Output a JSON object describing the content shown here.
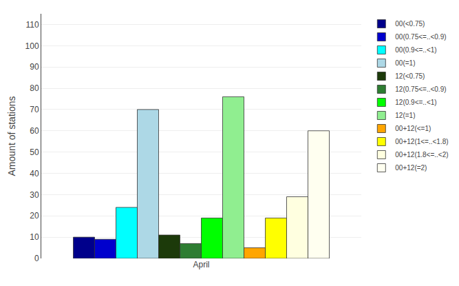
{
  "chart_data": {
    "type": "bar",
    "categories": [
      "April"
    ],
    "ylabel": "Amount of stations",
    "ylim": [
      0,
      115
    ],
    "yticks": [
      0,
      10,
      20,
      30,
      40,
      50,
      60,
      70,
      80,
      90,
      100,
      110
    ],
    "grid": true,
    "legend": "upper right",
    "series": [
      {
        "name": "00(<0.75)",
        "color": "#00008B",
        "values": [
          10
        ]
      },
      {
        "name": "00(0.75<=..<0.9)",
        "color": "#0000CD",
        "values": [
          9
        ]
      },
      {
        "name": "00(0.9<=..<1)",
        "color": "#00FFFF",
        "values": [
          24
        ]
      },
      {
        "name": "00(=1)",
        "color": "#ADD8E6",
        "values": [
          70
        ]
      },
      {
        "name": "12(<0.75)",
        "color": "#1C3A0A",
        "values": [
          11
        ]
      },
      {
        "name": "12(0.75<=..<0.9)",
        "color": "#2E7D32",
        "values": [
          7
        ]
      },
      {
        "name": "12(0.9<=..<1)",
        "color": "#00FF00",
        "values": [
          19
        ]
      },
      {
        "name": "12(=1)",
        "color": "#90EE90",
        "values": [
          76
        ]
      },
      {
        "name": "00+12(<=1)",
        "color": "#FFA500",
        "values": [
          5
        ]
      },
      {
        "name": "00+12(1<=..<1.8)",
        "color": "#FFFF00",
        "values": [
          19
        ]
      },
      {
        "name": "00+12(1.8<=..<2)",
        "color": "#FFFFE0",
        "values": [
          29
        ]
      },
      {
        "name": "00+12(=2)",
        "color": "#FFFFF0",
        "values": [
          60
        ]
      }
    ]
  }
}
